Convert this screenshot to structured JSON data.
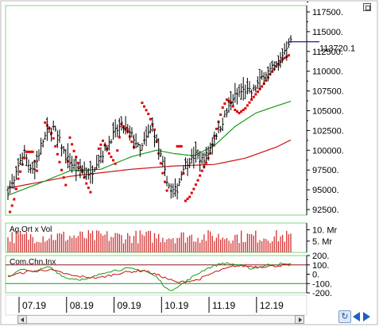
{
  "colors": {
    "frame": "#7dd97d",
    "price_bar": "#000000",
    "parabolic_sar": "#e00000",
    "ma_short": "#1a9a1a",
    "ma_long": "#cc1111",
    "last_price_line": "#1a1aa0",
    "volume": "#d43030",
    "cci_green": "#1a9a1a",
    "cci_red": "#cc1111",
    "cci_ref": "#8b1a1a"
  },
  "price_panel": {
    "y_ticks": [
      "117500.",
      "115000.",
      "112500.",
      "110000.",
      "107500.",
      "105000.",
      "102500.",
      "100000.",
      "97500.",
      "95000.",
      "92500."
    ],
    "last_price_label": "113720.1"
  },
  "volume_panel": {
    "label": "Ag.Ort x Vol",
    "y_ticks": [
      "10. Mr",
      "5. Mr"
    ]
  },
  "cci_panel": {
    "label": "Com.Chn.Inx",
    "y_ticks": [
      "200.",
      "100.",
      "0.",
      "-100.",
      "-200."
    ]
  },
  "x_axis": {
    "labels": [
      "07.19",
      "08.19",
      "09.19",
      "10.19",
      "11.19",
      "12.19"
    ]
  },
  "controls": {
    "refresh_icon": "refresh-icon",
    "prev_icon": "triangle-left-icon",
    "next_icon": "triangle-right-icon",
    "zoom_icon": "square-icon"
  },
  "chart_data": [
    {
      "type": "ohlc",
      "name": "price",
      "y_ticks": [
        117500,
        115000,
        112500,
        110000,
        107500,
        105000,
        102500,
        100000,
        97500,
        95000,
        92500
      ],
      "last_value": 113720.1,
      "ylim": [
        91800,
        118300
      ],
      "x_ticks": [
        "07.19",
        "08.19",
        "09.19",
        "10.19",
        "11.19",
        "12.19"
      ],
      "close_anchors": [
        [
          0,
          95000
        ],
        [
          3,
          96000
        ],
        [
          6,
          98800
        ],
        [
          8,
          99800
        ],
        [
          10,
          98200
        ],
        [
          13,
          97600
        ],
        [
          16,
          100600
        ],
        [
          19,
          102300
        ],
        [
          22,
          102800
        ],
        [
          25,
          101200
        ],
        [
          28,
          99200
        ],
        [
          31,
          98200
        ],
        [
          34,
          97300
        ],
        [
          37,
          97700
        ],
        [
          40,
          96800
        ],
        [
          43,
          98600
        ],
        [
          46,
          99600
        ],
        [
          49,
          101100
        ],
        [
          52,
          102300
        ],
        [
          55,
          103100
        ],
        [
          58,
          102400
        ],
        [
          61,
          101600
        ],
        [
          64,
          99800
        ],
        [
          67,
          101600
        ],
        [
          70,
          102900
        ],
        [
          73,
          100200
        ],
        [
          76,
          97200
        ],
        [
          79,
          94700
        ],
        [
          82,
          95100
        ],
        [
          85,
          98000
        ],
        [
          88,
          98800
        ],
        [
          91,
          99400
        ],
        [
          94,
          98800
        ],
        [
          97,
          99600
        ],
        [
          100,
          101600
        ],
        [
          103,
          103100
        ],
        [
          106,
          104800
        ],
        [
          109,
          106600
        ],
        [
          112,
          107300
        ],
        [
          115,
          107600
        ],
        [
          118,
          107300
        ],
        [
          121,
          108400
        ],
        [
          124,
          109600
        ],
        [
          127,
          110100
        ],
        [
          130,
          110700
        ],
        [
          133,
          112100
        ],
        [
          136,
          113700
        ],
        [
          137,
          113720
        ]
      ],
      "parabolic_sar_anchors": [
        [
          1,
          92200
        ],
        [
          3,
          93800
        ],
        [
          5,
          96400
        ],
        [
          7,
          98200
        ],
        [
          9,
          99800
        ],
        [
          12,
          99800
        ],
        [
          14,
          97400
        ],
        [
          18,
          103500
        ],
        [
          20,
          102800
        ],
        [
          22,
          101500
        ],
        [
          24,
          99500
        ],
        [
          26,
          97500
        ],
        [
          28,
          95600
        ],
        [
          30,
          101600
        ],
        [
          32,
          99900
        ],
        [
          34,
          98400
        ],
        [
          36,
          97300
        ],
        [
          38,
          95800
        ],
        [
          40,
          94700
        ],
        [
          44,
          100200
        ],
        [
          46,
          101200
        ],
        [
          49,
          99600
        ],
        [
          52,
          98300
        ],
        [
          55,
          103300
        ],
        [
          58,
          102400
        ],
        [
          61,
          100400
        ],
        [
          65,
          106000
        ],
        [
          68,
          104600
        ],
        [
          71,
          102600
        ],
        [
          73,
          99600
        ],
        [
          75,
          97100
        ],
        [
          77,
          94900
        ],
        [
          82,
          100500
        ],
        [
          84,
          100500
        ],
        [
          86,
          93600
        ],
        [
          88,
          94100
        ],
        [
          90,
          95100
        ],
        [
          92,
          96200
        ],
        [
          94,
          97400
        ],
        [
          96,
          98400
        ],
        [
          98,
          99600
        ],
        [
          100,
          101800
        ],
        [
          102,
          103600
        ],
        [
          104,
          105400
        ],
        [
          106,
          106400
        ],
        [
          108,
          106000
        ],
        [
          110,
          105100
        ],
        [
          112,
          104700
        ],
        [
          115,
          105300
        ],
        [
          118,
          106400
        ],
        [
          121,
          107400
        ],
        [
          124,
          108400
        ],
        [
          127,
          109600
        ],
        [
          130,
          110600
        ],
        [
          133,
          111500
        ],
        [
          136,
          112000
        ]
      ],
      "ma_short_anchors": [
        [
          0,
          94300
        ],
        [
          15,
          95800
        ],
        [
          30,
          97400
        ],
        [
          45,
          97600
        ],
        [
          60,
          99200
        ],
        [
          72,
          100000
        ],
        [
          80,
          99600
        ],
        [
          90,
          99300
        ],
        [
          100,
          100600
        ],
        [
          110,
          103000
        ],
        [
          120,
          104700
        ],
        [
          130,
          105600
        ],
        [
          137,
          106200
        ]
      ],
      "ma_long_anchors": [
        [
          0,
          95200
        ],
        [
          30,
          96700
        ],
        [
          60,
          97600
        ],
        [
          80,
          98000
        ],
        [
          100,
          98200
        ],
        [
          115,
          99000
        ],
        [
          130,
          100400
        ],
        [
          137,
          101300
        ]
      ]
    },
    {
      "type": "bar",
      "name": "volume",
      "y_ticks": [
        "10. Mr",
        "5. Mr"
      ],
      "ylim": [
        0,
        13000000
      ],
      "value_range_estimate": [
        4000000,
        10000000
      ]
    },
    {
      "type": "line",
      "name": "commodity_channel_index",
      "y_ticks": [
        200,
        100,
        0,
        -100,
        -200
      ],
      "ylim": [
        -200,
        200
      ],
      "green_anchors": [
        [
          0,
          -40
        ],
        [
          6,
          60
        ],
        [
          12,
          20
        ],
        [
          20,
          80
        ],
        [
          28,
          -40
        ],
        [
          38,
          -60
        ],
        [
          48,
          30
        ],
        [
          58,
          60
        ],
        [
          66,
          40
        ],
        [
          72,
          -30
        ],
        [
          78,
          -180
        ],
        [
          84,
          -110
        ],
        [
          90,
          -20
        ],
        [
          96,
          60
        ],
        [
          104,
          120
        ],
        [
          112,
          100
        ],
        [
          118,
          60
        ],
        [
          126,
          100
        ],
        [
          132,
          110
        ],
        [
          137,
          100
        ]
      ],
      "red_anchors": [
        [
          0,
          -20
        ],
        [
          10,
          30
        ],
        [
          20,
          50
        ],
        [
          32,
          -20
        ],
        [
          44,
          -40
        ],
        [
          56,
          20
        ],
        [
          66,
          40
        ],
        [
          74,
          -20
        ],
        [
          82,
          -90
        ],
        [
          92,
          -60
        ],
        [
          100,
          20
        ],
        [
          110,
          90
        ],
        [
          122,
          80
        ],
        [
          137,
          100
        ]
      ]
    }
  ]
}
